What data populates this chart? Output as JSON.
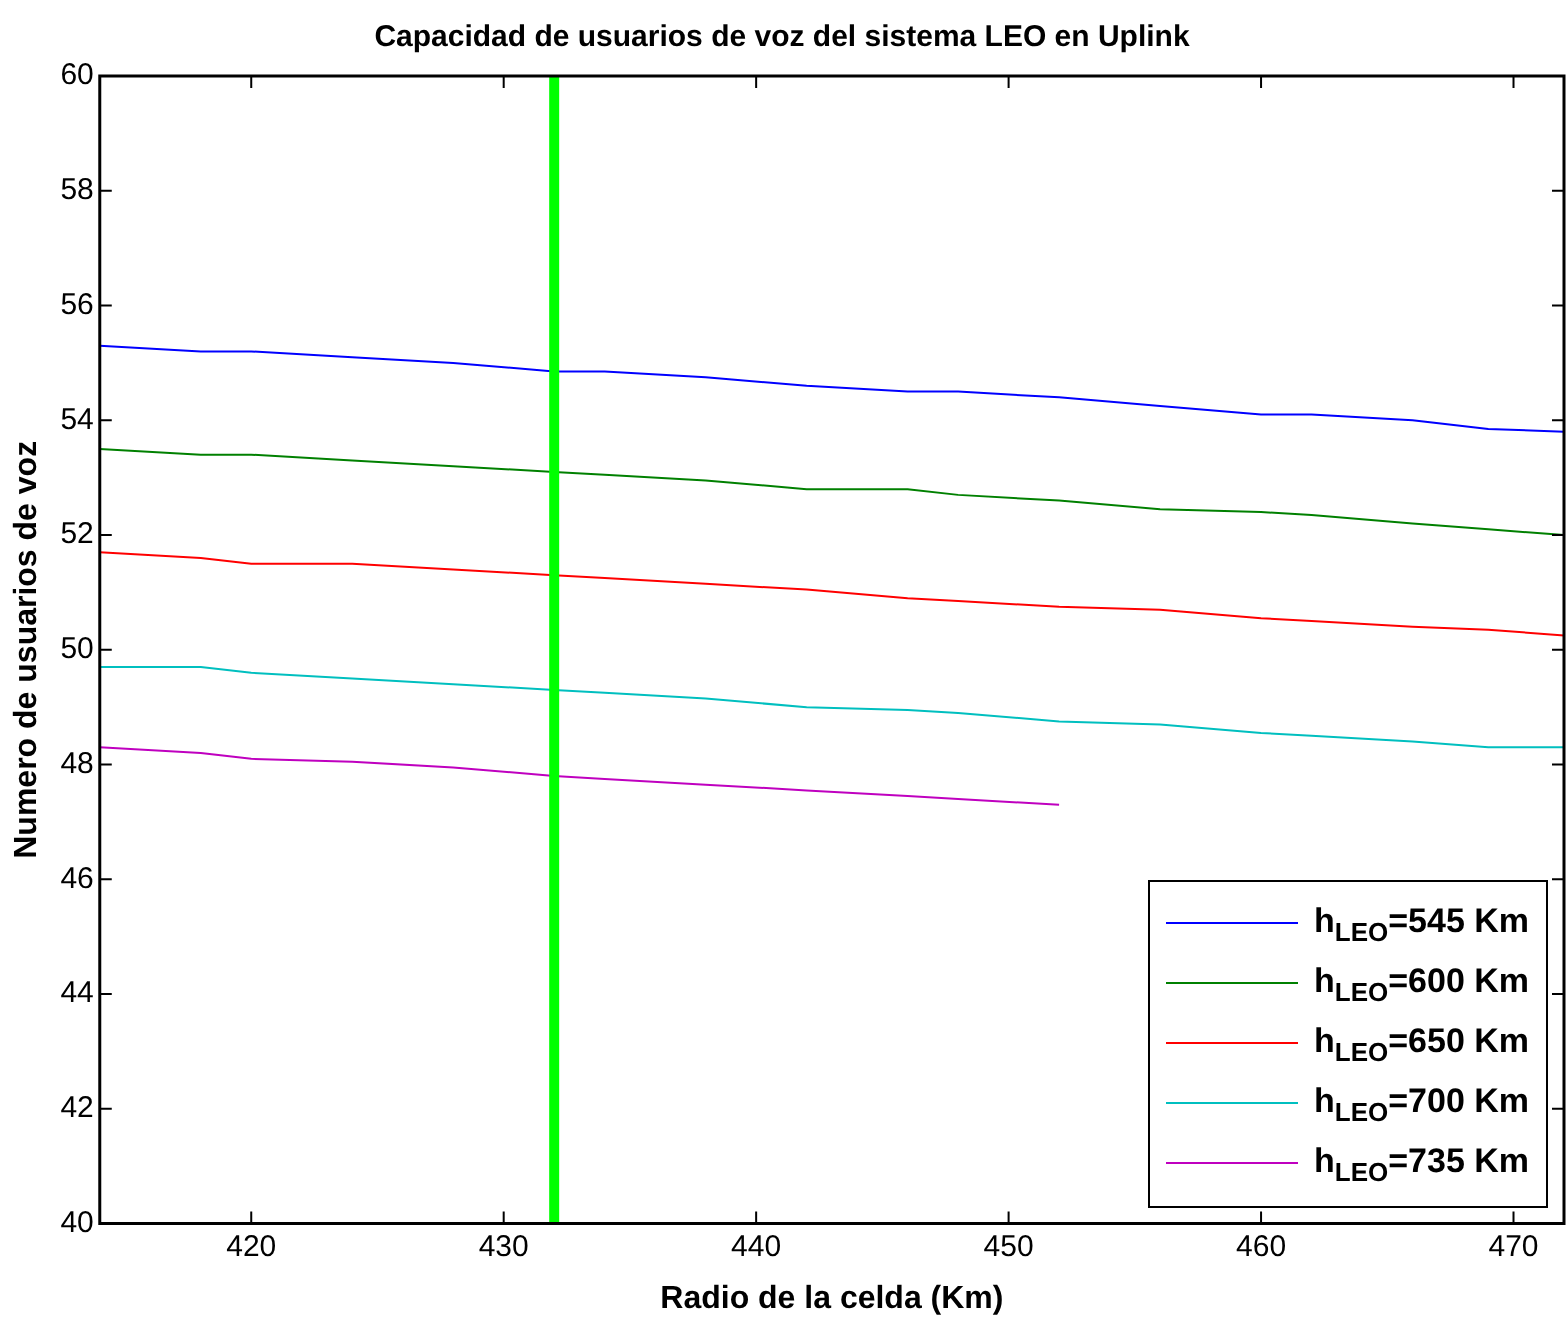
{
  "chart_data": {
    "type": "line",
    "title": "Capacidad de usuarios de voz del sistema LEO en Uplink",
    "xlabel": "Radio de la celda (Km)",
    "ylabel": "Numero de usuarios de voz",
    "x": [
      414,
      418,
      420,
      424,
      428,
      432,
      434,
      438,
      442,
      446,
      448,
      452,
      456,
      460,
      462,
      466,
      469,
      472
    ],
    "series": [
      {
        "name": "h$_{LEO}$=545 Km",
        "color": "#0000ff",
        "values": [
          55.3,
          55.2,
          55.2,
          55.1,
          55.0,
          54.85,
          54.85,
          54.75,
          54.6,
          54.5,
          54.5,
          54.4,
          54.25,
          54.1,
          54.1,
          54.0,
          53.85,
          53.8
        ]
      },
      {
        "name": "h$_{LEO}$=600 Km",
        "color": "#008000",
        "values": [
          53.5,
          53.4,
          53.4,
          53.3,
          53.2,
          53.1,
          53.05,
          52.95,
          52.8,
          52.8,
          52.7,
          52.6,
          52.45,
          52.4,
          52.35,
          52.2,
          52.1,
          52.0
        ]
      },
      {
        "name": "h$_{LEO}$=650 Km",
        "color": "#ff0000",
        "values": [
          51.7,
          51.6,
          51.5,
          51.5,
          51.4,
          51.3,
          51.25,
          51.15,
          51.05,
          50.9,
          50.85,
          50.75,
          50.7,
          50.55,
          50.5,
          50.4,
          50.35,
          50.25
        ]
      },
      {
        "name": "h$_{LEO}$=700 Km",
        "color": "#00bfbf",
        "values": [
          49.7,
          49.7,
          49.6,
          49.5,
          49.4,
          49.3,
          49.25,
          49.15,
          49.0,
          48.95,
          48.9,
          48.75,
          48.7,
          48.55,
          48.5,
          48.4,
          48.3,
          48.3
        ]
      },
      {
        "name": "h$_{LEO}$=735 Km",
        "color": "#bf00bf",
        "values": [
          48.3,
          48.2,
          48.1,
          48.05,
          47.95,
          47.8,
          47.75,
          47.65,
          47.55,
          47.45,
          47.4,
          47.3,
          null,
          null,
          null,
          null,
          null,
          null
        ]
      }
    ],
    "xlim": [
      414,
      472
    ],
    "xticks": [
      420,
      430,
      440,
      450,
      460,
      470
    ],
    "ylim": [
      40,
      60
    ],
    "yticks": [
      40,
      42,
      44,
      46,
      48,
      50,
      52,
      54,
      56,
      58,
      60
    ],
    "grid": false,
    "legend": "bottom right",
    "ref_lines": [
      {
        "axis": "x",
        "value": 432,
        "color": "#00ff00"
      }
    ]
  }
}
